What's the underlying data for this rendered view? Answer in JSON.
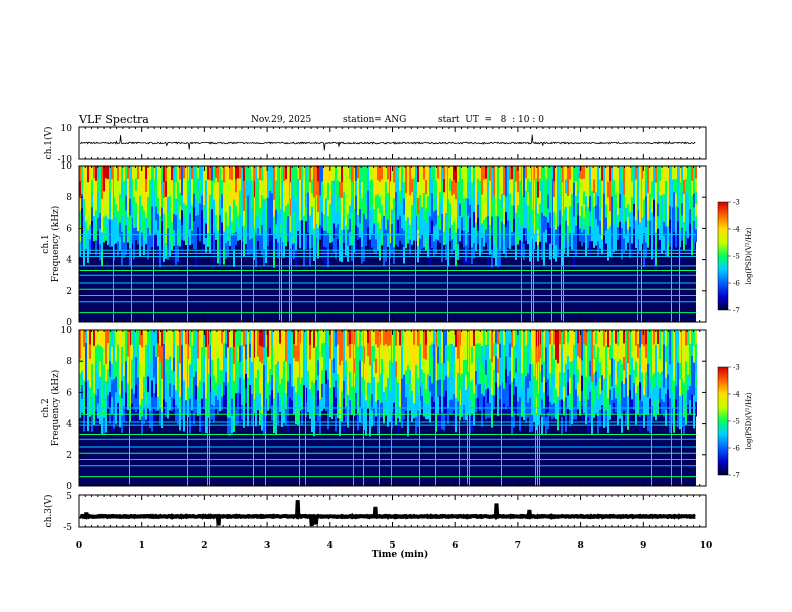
{
  "header": {
    "title": "VLF Spectra",
    "date": "Nov.29, 2025",
    "station": "station= ANG",
    "start": "start  UT  =   8  : 10 : 0"
  },
  "colors": {
    "background": "#ffffff",
    "axis": "#000000",
    "colormap": [
      "#000033",
      "#0000c8",
      "#0060ff",
      "#00d0ff",
      "#00ff60",
      "#c0ff00",
      "#ffe000",
      "#ff6000",
      "#d00000"
    ]
  },
  "chart_data": [
    {
      "type": "line",
      "panel": "ch1-waveform",
      "ylabel": "ch.1(V)",
      "ylim": [
        -10,
        10
      ],
      "yticks": [
        "10",
        "-10"
      ],
      "series": [
        {
          "name": "ch.1",
          "baseline": 0.0,
          "amplitude": 1
        }
      ]
    },
    {
      "type": "heatmap",
      "panel": "ch1-spectrogram",
      "ylabel_channel": "ch.1",
      "ylabel": "Frequency (kHz)",
      "ylim": [
        0,
        10
      ],
      "yticks": [
        "0",
        "2",
        "4",
        "6",
        "8",
        "10"
      ],
      "colorbar": {
        "label": "log(PSD)(V²/Hz)",
        "range": [
          -7,
          -3
        ],
        "ticks": [
          "-3",
          "-4",
          "-5",
          "-6",
          "-7"
        ]
      },
      "spectral_lines_khz": [
        0.6,
        1.3,
        1.7,
        2.1,
        2.5,
        3.0,
        3.3,
        3.6,
        4.2,
        4.4,
        4.6,
        5.6
      ],
      "bands": [
        {
          "from": 5.3,
          "to": 10,
          "level": "high"
        },
        {
          "from": 0,
          "to": 5.3,
          "level": "low"
        }
      ]
    },
    {
      "type": "heatmap",
      "panel": "ch2-spectrogram",
      "ylabel_channel": "ch.2",
      "ylabel": "Frequency (kHz)",
      "ylim": [
        0,
        10
      ],
      "yticks": [
        "0",
        "2",
        "4",
        "6",
        "8",
        "10"
      ],
      "colorbar": {
        "label": "log(PSD)(V²/Hz)",
        "range": [
          -7,
          -3
        ],
        "ticks": [
          "-3",
          "-4",
          "-5",
          "-6",
          "-7"
        ]
      },
      "spectral_lines_khz": [
        0.6,
        1.3,
        1.7,
        2.1,
        2.5,
        3.0,
        3.3,
        3.9,
        4.1,
        4.6,
        5.0
      ],
      "bands": [
        {
          "from": 5.0,
          "to": 10,
          "level": "high"
        },
        {
          "from": 0,
          "to": 5.0,
          "level": "low"
        }
      ]
    },
    {
      "type": "line",
      "panel": "ch3-waveform",
      "ylabel": "ch.3(V)",
      "ylim": [
        -5,
        5
      ],
      "yticks": [
        "5",
        "-5"
      ],
      "series": [
        {
          "name": "ch.3",
          "baseline": -1.7,
          "amplitude": 0.3
        }
      ]
    }
  ],
  "xaxis": {
    "label": "Time  (min)",
    "range": [
      0,
      10
    ],
    "ticks": [
      "0",
      "1",
      "2",
      "3",
      "4",
      "5",
      "6",
      "7",
      "8",
      "9",
      "10"
    ],
    "data_end_min": 9.84
  }
}
